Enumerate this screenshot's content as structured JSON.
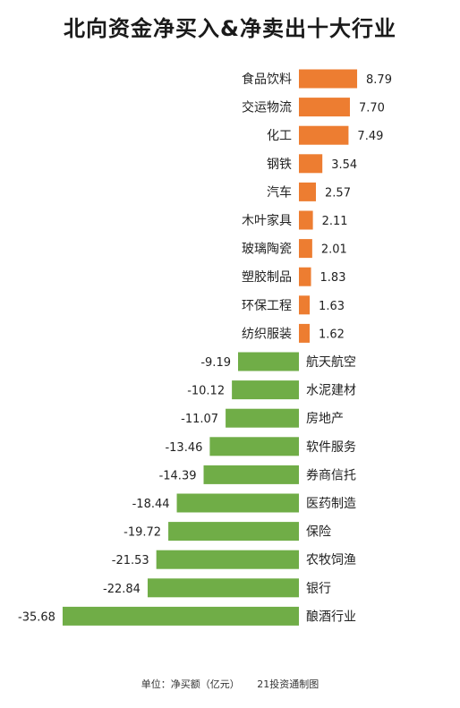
{
  "chart_data": {
    "type": "bar",
    "orientation": "horizontal",
    "title": "北向资金净买入&净卖出十大行业",
    "categories": [
      "食品饮料",
      "交运物流",
      "化工",
      "钢铁",
      "汽车",
      "木叶家具",
      "玻璃陶瓷",
      "塑胶制品",
      "环保工程",
      "纺织服装",
      "航天航空",
      "水泥建材",
      "房地产",
      "软件服务",
      "券商信托",
      "医药制造",
      "保险",
      "农牧饲渔",
      "银行",
      "酿酒行业"
    ],
    "values": [
      8.79,
      7.7,
      7.49,
      3.54,
      2.57,
      2.11,
      2.01,
      1.83,
      1.63,
      1.62,
      -9.19,
      -10.12,
      -11.07,
      -13.46,
      -14.39,
      -18.44,
      -19.72,
      -21.53,
      -22.84,
      -35.68
    ],
    "value_labels": [
      "8.79",
      "7.70",
      "7.49",
      "3.54",
      "2.57",
      "2.11",
      "2.01",
      "1.83",
      "1.63",
      "1.62",
      "-9.19",
      "-10.12",
      "-11.07",
      "-13.46",
      "-14.39",
      "-18.44",
      "-19.72",
      "-21.53",
      "-22.84",
      "-35.68"
    ],
    "xlim": [
      -35.68,
      8.79
    ],
    "grid": false,
    "legend": "none",
    "colors": {
      "positive": "#ED7D31",
      "negative": "#70AD47"
    }
  },
  "footer": {
    "unit": "单位：净买额（亿元）",
    "source": "21投资通制图"
  }
}
